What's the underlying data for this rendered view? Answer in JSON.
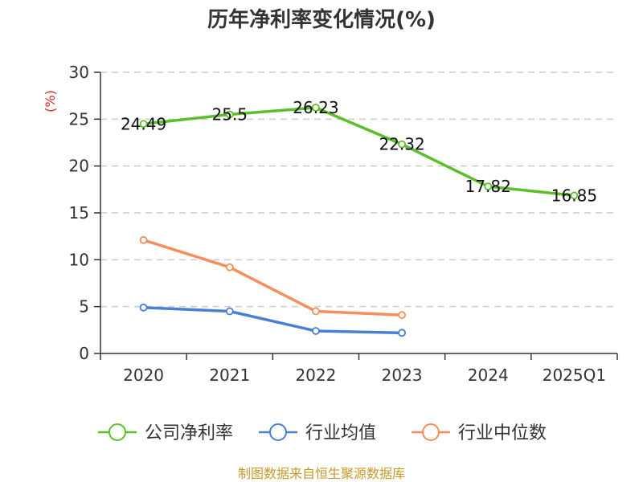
{
  "chart_data": {
    "type": "line",
    "title": "历年净利率变化情况(%)",
    "ylabel": "(%)",
    "xlabel": "",
    "categories": [
      "2020",
      "2021",
      "2022",
      "2023",
      "2024",
      "2025Q1"
    ],
    "ylim": [
      0,
      30
    ],
    "yticks": [
      0,
      5,
      10,
      15,
      20,
      25,
      30
    ],
    "grid": true,
    "legend_position": "bottom",
    "series": [
      {
        "name": "公司净利率",
        "color": "#5cbf2a",
        "values": [
          24.49,
          25.5,
          26.23,
          22.32,
          17.82,
          16.85
        ],
        "labels": [
          "24.49",
          "25.5",
          "26.23",
          "22.32",
          "17.82",
          "16.85"
        ],
        "show_labels": true
      },
      {
        "name": "行业均值",
        "color": "#4a7fd6",
        "values": [
          4.9,
          4.5,
          2.4,
          2.2,
          null,
          null
        ],
        "show_labels": false
      },
      {
        "name": "行业中位数",
        "color": "#f58e5c",
        "values": [
          12.1,
          9.2,
          4.5,
          4.1,
          null,
          null
        ],
        "show_labels": false
      }
    ]
  },
  "footer": {
    "source": "制图数据来自恒生聚源数据库"
  }
}
